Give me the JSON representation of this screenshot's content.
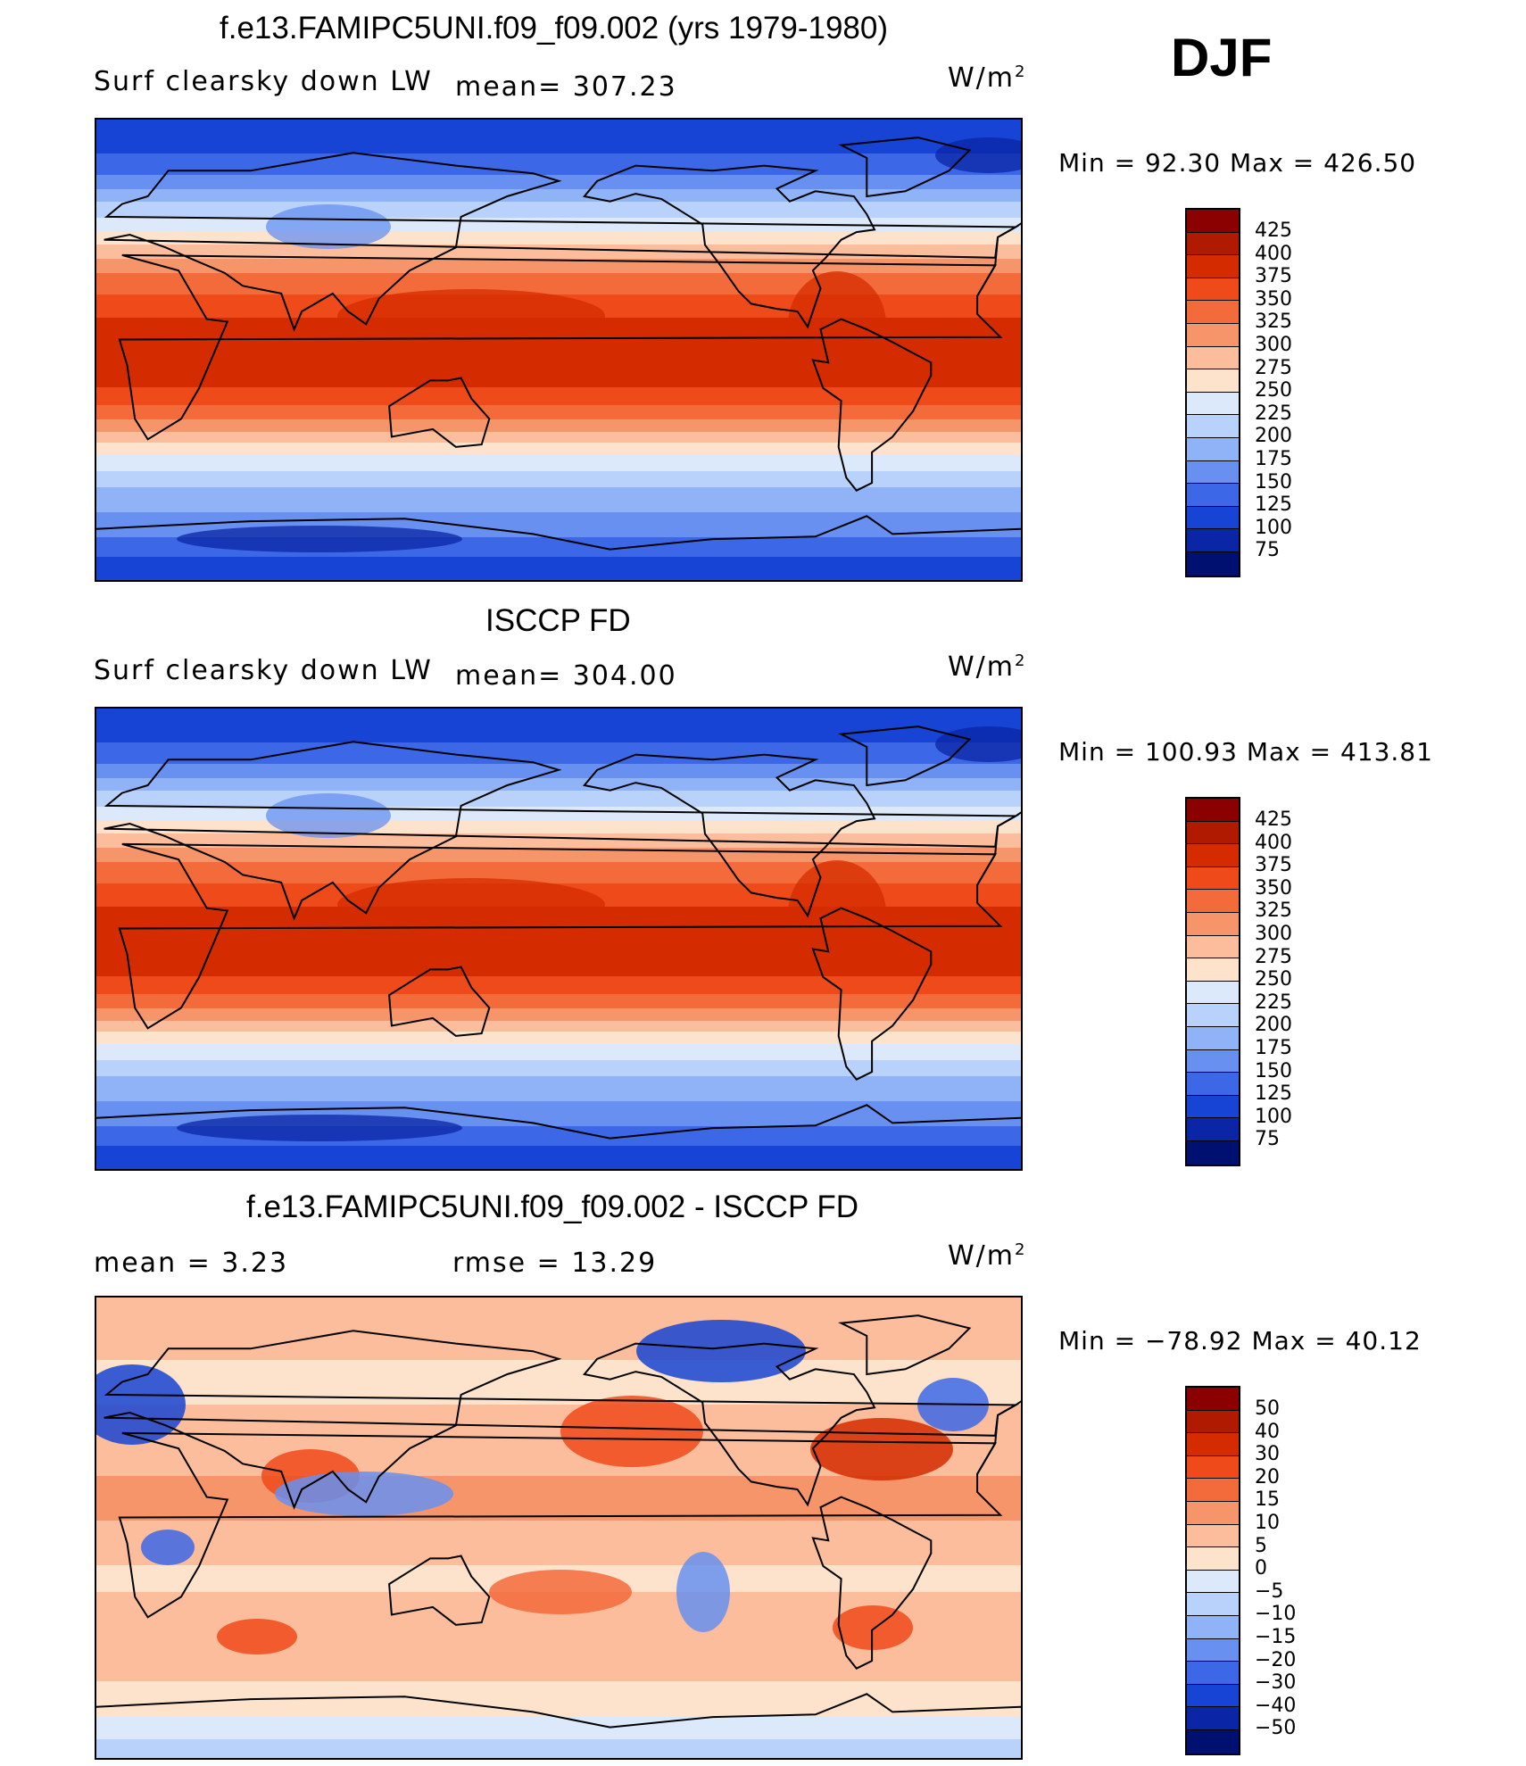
{
  "season": "DJF",
  "panels": [
    {
      "id": "model",
      "title": "f.e13.FAMIPC5UNI.f09_f09.002 (yrs 1979-1980)",
      "left_label": "Surf  clearsky  down  LW",
      "center_label": "mean=  307.23",
      "units": "W/m",
      "units_sup": "2",
      "minmax": "Min  =    92.30  Max  =  426.50",
      "colorbar_levels": [
        "425",
        "400",
        "375",
        "350",
        "325",
        "300",
        "275",
        "250",
        "225",
        "200",
        "175",
        "150",
        "125",
        "100",
        "75"
      ],
      "colorbar_colors": [
        "#8b0000",
        "#b01a00",
        "#d42c00",
        "#ee4a1a",
        "#f36b3b",
        "#f7956a",
        "#fbbd9b",
        "#fde3cc",
        "#dbe9fb",
        "#b9d2fb",
        "#90b3f7",
        "#6790f0",
        "#3c68e8",
        "#1744d4",
        "#0a25a6",
        "#001070"
      ],
      "map_kind": "absolute"
    },
    {
      "id": "obs",
      "title": "ISCCP FD",
      "left_label": "Surf  clearsky  down  LW",
      "center_label": "mean=  304.00",
      "units": "W/m",
      "units_sup": "2",
      "minmax": "Min  =  100.93  Max  =  413.81",
      "colorbar_levels": [
        "425",
        "400",
        "375",
        "350",
        "325",
        "300",
        "275",
        "250",
        "225",
        "200",
        "175",
        "150",
        "125",
        "100",
        "75"
      ],
      "colorbar_colors": [
        "#8b0000",
        "#b01a00",
        "#d42c00",
        "#ee4a1a",
        "#f36b3b",
        "#f7956a",
        "#fbbd9b",
        "#fde3cc",
        "#dbe9fb",
        "#b9d2fb",
        "#90b3f7",
        "#6790f0",
        "#3c68e8",
        "#1744d4",
        "#0a25a6",
        "#001070"
      ],
      "map_kind": "absolute"
    },
    {
      "id": "diff",
      "title": "f.e13.FAMIPC5UNI.f09_f09.002 - ISCCP FD",
      "left_label": "mean  =      3.23",
      "center_label": "rmse  =     13.29",
      "units": "W/m",
      "units_sup": "2",
      "minmax": "Min  =  −78.92  Max  =    40.12",
      "colorbar_levels": [
        "50",
        "40",
        "30",
        "20",
        "15",
        "10",
        "5",
        "0",
        "−5",
        "−10",
        "−15",
        "−20",
        "−30",
        "−40",
        "−50"
      ],
      "colorbar_colors": [
        "#8b0000",
        "#b01a00",
        "#d42c00",
        "#ee4a1a",
        "#f36b3b",
        "#f7956a",
        "#fbbd9b",
        "#fde3cc",
        "#dbe9fb",
        "#b9d2fb",
        "#90b3f7",
        "#6790f0",
        "#3c68e8",
        "#1744d4",
        "#0a25a6",
        "#001070"
      ],
      "map_kind": "difference"
    }
  ]
}
